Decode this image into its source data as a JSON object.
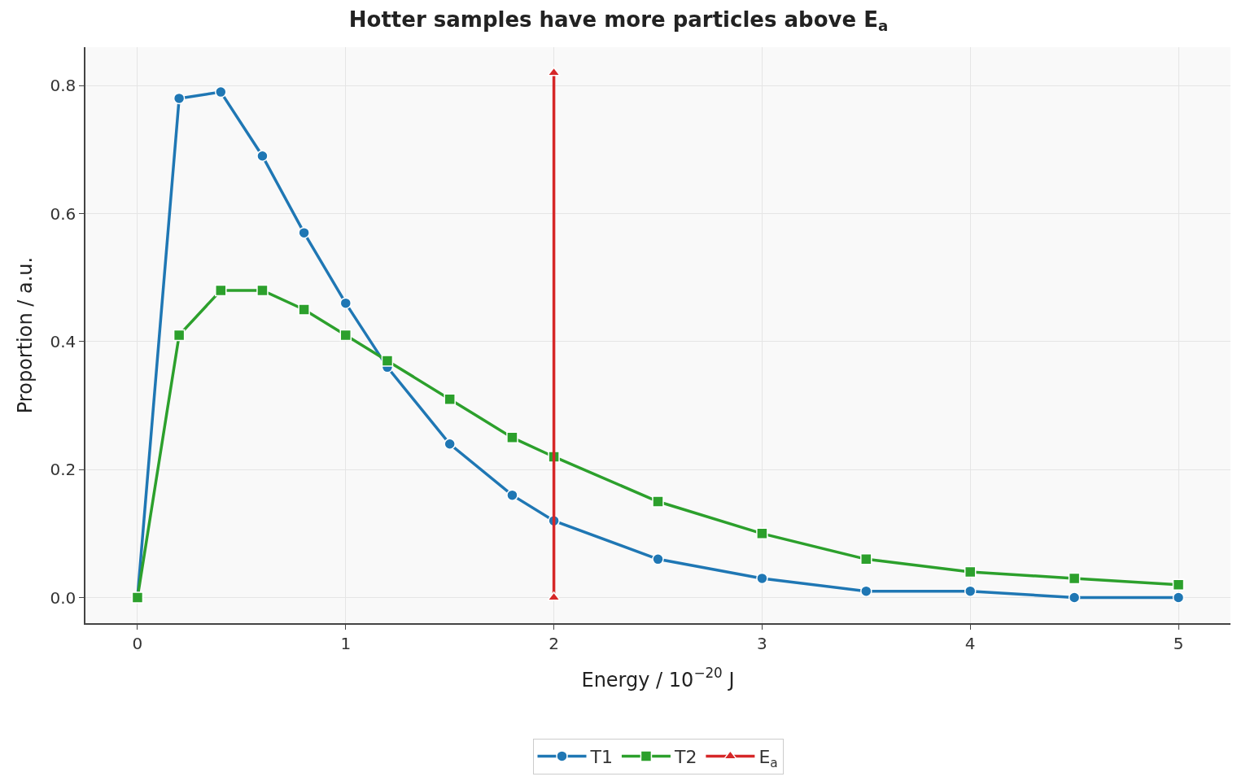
{
  "chart_data": {
    "type": "line",
    "title": "Hotter samples have more particles above E$_{a}$",
    "xlabel": "Energy / 10$^{−20}$ J",
    "ylabel": "Proportion / a.u.",
    "xlim": [
      -0.25,
      5.25
    ],
    "xticks": [
      0,
      1,
      2,
      3,
      4,
      5
    ],
    "ylim": [
      -0.04,
      0.86
    ],
    "yticks": [
      {
        "value": 0,
        "label": "0.0"
      },
      {
        "value": 0.2,
        "label": "0.2"
      },
      {
        "value": 0.4,
        "label": "0.4"
      },
      {
        "value": 0.6,
        "label": "0.6"
      },
      {
        "value": 0.8,
        "label": "0.8"
      }
    ],
    "grid": true,
    "legend": "bottom",
    "line_style": "solid",
    "series": [
      {
        "name": "T1",
        "color": "#1f77b4",
        "marker": "circle",
        "x": [
          0,
          0.2,
          0.4,
          0.6,
          0.8,
          1.0,
          1.2,
          1.5,
          1.8,
          2.0,
          2.5,
          3.0,
          3.5,
          4.0,
          4.5,
          5.0
        ],
        "values": [
          0,
          0.78,
          0.79,
          0.69,
          0.57,
          0.46,
          0.36,
          0.24,
          0.16,
          0.12,
          0.06,
          0.03,
          0.01,
          0.01,
          0.0,
          0.0
        ]
      },
      {
        "name": "T2",
        "color": "#2ca02c",
        "marker": "square",
        "x": [
          0,
          0.2,
          0.4,
          0.6,
          0.8,
          1.0,
          1.2,
          1.5,
          1.8,
          2.0,
          2.5,
          3.0,
          3.5,
          4.0,
          4.5,
          5.0
        ],
        "values": [
          0,
          0.41,
          0.48,
          0.48,
          0.45,
          0.41,
          0.37,
          0.31,
          0.25,
          0.22,
          0.15,
          0.1,
          0.06,
          0.04,
          0.03,
          0.02
        ]
      },
      {
        "name": "E$_{a}$",
        "color": "#d62728",
        "marker": "triangle",
        "x": [
          2,
          2
        ],
        "values": [
          0,
          0.82
        ]
      }
    ]
  }
}
